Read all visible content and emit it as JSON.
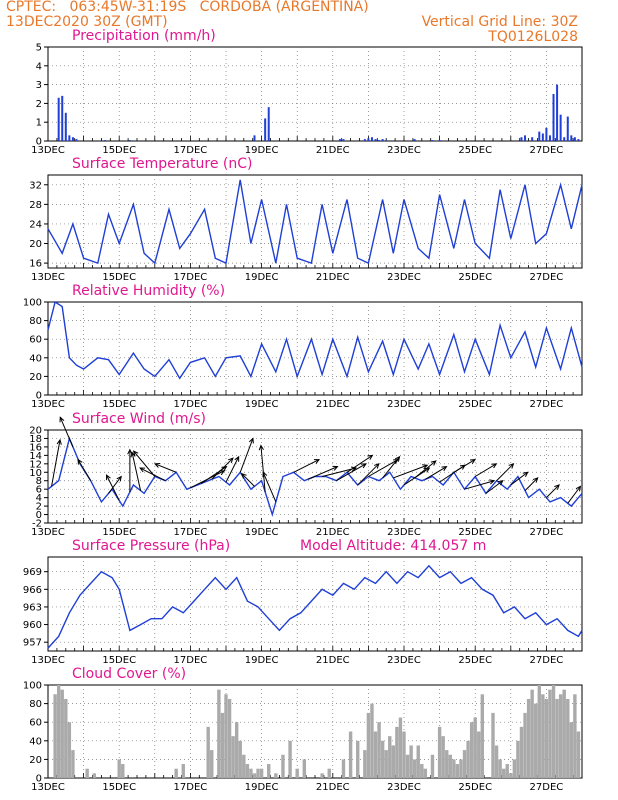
{
  "header": {
    "line1_left": "CPTEC:   063:45W-31:19S   CORDOBA (ARGENTINA)",
    "line2_left": "13DEC2020 30Z (GMT)",
    "line2_right": "Vertical Grid Line: 30Z",
    "line3_right": "TQ0126L028"
  },
  "colors": {
    "header": "#e8782a",
    "title": "#e01890",
    "series": "#1f3fd6",
    "cloud": "#aaaaaa",
    "wind": "#000000"
  },
  "chart_data": [
    {
      "type": "bar",
      "title": "Precipitation (mm/h)",
      "x_tick_labels": [
        "13DEC",
        "15DEC",
        "17DEC",
        "19DEC",
        "21DEC",
        "23DEC",
        "25DEC",
        "27DEC"
      ],
      "ylim": [
        0,
        5
      ],
      "y_ticks": [
        0,
        1,
        2,
        3,
        4,
        5
      ],
      "x": [
        0.3,
        0.4,
        0.5,
        0.6,
        0.7,
        0.8,
        1.6,
        2.3,
        5.8,
        6.1,
        6.2,
        8.2,
        8.3,
        8.9,
        9.0,
        9.1,
        9.2,
        9.3,
        9.4,
        9.5,
        10.3,
        10.8,
        11.0,
        13.3,
        13.4,
        13.6,
        13.8,
        13.9,
        14.0,
        14.1,
        14.2,
        14.3,
        14.4,
        14.5,
        14.6,
        14.7,
        14.8,
        14.9
      ],
      "values": [
        2.3,
        2.4,
        1.5,
        0.3,
        0.2,
        0.1,
        0.05,
        0.05,
        0.3,
        1.2,
        1.8,
        0.1,
        0.1,
        0.1,
        0.15,
        0.2,
        0.1,
        0.05,
        0.1,
        0.05,
        0.1,
        0.05,
        0.05,
        0.2,
        0.3,
        0.2,
        0.5,
        0.4,
        0.7,
        0.3,
        2.5,
        3.0,
        1.4,
        0.2,
        1.3,
        0.3,
        0.2,
        0.1
      ]
    },
    {
      "type": "line",
      "title": "Surface Temperature (nC)",
      "x_tick_labels": [
        "13DEC",
        "15DEC",
        "17DEC",
        "19DEC",
        "21DEC",
        "23DEC",
        "25DEC",
        "27DEC"
      ],
      "ylim": [
        15,
        34
      ],
      "y_ticks": [
        16,
        20,
        24,
        28,
        32
      ],
      "x": [
        0,
        0.4,
        0.7,
        1.0,
        1.4,
        1.7,
        2.0,
        2.4,
        2.7,
        3.0,
        3.4,
        3.7,
        4.0,
        4.4,
        4.7,
        5.0,
        5.4,
        5.7,
        6.0,
        6.4,
        6.7,
        7.0,
        7.4,
        7.7,
        8.0,
        8.4,
        8.7,
        9.0,
        9.4,
        9.7,
        10.0,
        10.4,
        10.7,
        11.0,
        11.4,
        11.7,
        12.0,
        12.4,
        12.7,
        13.0,
        13.4,
        13.7,
        14.0,
        14.4,
        14.7,
        15.0
      ],
      "values": [
        23,
        18,
        24,
        17,
        16,
        26,
        20,
        28,
        18,
        16,
        27,
        19,
        22,
        27,
        17,
        16,
        33,
        20,
        29,
        16,
        28,
        17,
        16,
        28,
        18,
        29,
        17,
        16,
        29,
        18,
        29,
        19,
        17,
        30,
        19,
        29,
        20,
        17,
        31,
        21,
        32,
        20,
        22,
        32,
        23,
        32
      ]
    },
    {
      "type": "line",
      "title": "Relative Humidity (%)",
      "x_tick_labels": [
        "13DEC",
        "15DEC",
        "17DEC",
        "19DEC",
        "21DEC",
        "23DEC",
        "25DEC",
        "27DEC"
      ],
      "ylim": [
        0,
        100
      ],
      "y_ticks": [
        0,
        20,
        40,
        60,
        80,
        100
      ],
      "x": [
        0,
        0.2,
        0.4,
        0.6,
        0.8,
        1.0,
        1.4,
        1.7,
        2.0,
        2.4,
        2.7,
        3.0,
        3.4,
        3.7,
        4.0,
        4.4,
        4.7,
        5.0,
        5.4,
        5.7,
        6.0,
        6.4,
        6.7,
        7.0,
        7.4,
        7.7,
        8.0,
        8.4,
        8.7,
        9.0,
        9.4,
        9.7,
        10.0,
        10.4,
        10.7,
        11.0,
        11.4,
        11.7,
        12.0,
        12.4,
        12.7,
        13.0,
        13.4,
        13.7,
        14.0,
        14.4,
        14.7,
        15.0
      ],
      "values": [
        70,
        100,
        95,
        40,
        32,
        28,
        40,
        38,
        22,
        45,
        28,
        20,
        38,
        18,
        35,
        40,
        20,
        40,
        42,
        20,
        55,
        25,
        60,
        20,
        60,
        22,
        60,
        20,
        62,
        25,
        58,
        22,
        60,
        28,
        55,
        22,
        65,
        25,
        60,
        22,
        75,
        40,
        68,
        30,
        72,
        28,
        72,
        30
      ]
    },
    {
      "type": "line",
      "title": "Surface Wind (m/s)",
      "x_tick_labels": [
        "13DEC",
        "15DEC",
        "17DEC",
        "19DEC",
        "21DEC",
        "23DEC",
        "25DEC",
        "27DEC"
      ],
      "ylim": [
        -2,
        20
      ],
      "y_ticks": [
        -2,
        0,
        2,
        4,
        6,
        8,
        10,
        12,
        14,
        16,
        18,
        20
      ],
      "x": [
        0,
        0.3,
        0.6,
        0.9,
        1.2,
        1.5,
        1.8,
        2.1,
        2.4,
        2.7,
        3.0,
        3.3,
        3.6,
        3.9,
        4.2,
        4.5,
        4.8,
        5.1,
        5.4,
        5.7,
        6.0,
        6.3,
        6.6,
        6.9,
        7.2,
        7.5,
        7.8,
        8.1,
        8.4,
        8.7,
        9.0,
        9.3,
        9.6,
        9.9,
        10.2,
        10.5,
        10.8,
        11.1,
        11.4,
        11.7,
        12.0,
        12.3,
        12.6,
        12.9,
        13.2,
        13.5,
        13.8,
        14.1,
        14.4,
        14.7,
        15.0
      ],
      "values": [
        6,
        8,
        18,
        12,
        8,
        3,
        6,
        2,
        7,
        5,
        9,
        8,
        10,
        6,
        7,
        8,
        9,
        7,
        10,
        6,
        8,
        0,
        9,
        10,
        8,
        9,
        9,
        8,
        10,
        7,
        9,
        8,
        10,
        6,
        9,
        8,
        9,
        7,
        10,
        6,
        9,
        5,
        8,
        6,
        9,
        4,
        6,
        3,
        4,
        2,
        5
      ],
      "wind_vectors": [
        {
          "x": 0.1,
          "u": 2,
          "v": 11
        },
        {
          "x": 0.7,
          "u": -3,
          "v": 7
        },
        {
          "x": 1.2,
          "u": -3,
          "v": 5
        },
        {
          "x": 1.7,
          "u": 3,
          "v": 4
        },
        {
          "x": 2.0,
          "u": -3,
          "v": 6
        },
        {
          "x": 2.3,
          "u": 0,
          "v": 10
        },
        {
          "x": 2.6,
          "u": -2,
          "v": 9
        },
        {
          "x": 3.0,
          "u": -5,
          "v": 6
        },
        {
          "x": 3.3,
          "u": -6,
          "v": 3
        },
        {
          "x": 3.6,
          "u": -5,
          "v": 2
        },
        {
          "x": 4.0,
          "u": 8,
          "v": 4
        },
        {
          "x": 4.3,
          "u": 6,
          "v": 4
        },
        {
          "x": 4.6,
          "u": 5,
          "v": 5
        },
        {
          "x": 5.0,
          "u": 3,
          "v": 6
        },
        {
          "x": 5.4,
          "u": 3,
          "v": 8
        },
        {
          "x": 5.8,
          "u": -3,
          "v": 3
        },
        {
          "x": 6.1,
          "u": -1,
          "v": 11
        },
        {
          "x": 6.4,
          "u": -3,
          "v": 7
        },
        {
          "x": 6.9,
          "u": 6,
          "v": 3
        },
        {
          "x": 7.3,
          "u": 7,
          "v": 3
        },
        {
          "x": 7.7,
          "u": 8,
          "v": 2
        },
        {
          "x": 8.1,
          "u": 7,
          "v": 4
        },
        {
          "x": 8.4,
          "u": 6,
          "v": 4
        },
        {
          "x": 8.7,
          "u": 5,
          "v": 5
        },
        {
          "x": 9.0,
          "u": 7,
          "v": 4
        },
        {
          "x": 9.4,
          "u": 4,
          "v": 5
        },
        {
          "x": 9.7,
          "u": 8,
          "v": 3
        },
        {
          "x": 10.0,
          "u": 6,
          "v": 4
        },
        {
          "x": 10.3,
          "u": 5,
          "v": 4
        },
        {
          "x": 10.6,
          "u": 5,
          "v": 3
        },
        {
          "x": 11.0,
          "u": 6,
          "v": 4
        },
        {
          "x": 11.4,
          "u": 5,
          "v": 3
        },
        {
          "x": 11.7,
          "u": 7,
          "v": 2
        },
        {
          "x": 12.0,
          "u": 5,
          "v": 3
        },
        {
          "x": 12.3,
          "u": 4,
          "v": 3
        },
        {
          "x": 12.6,
          "u": 4,
          "v": 4
        },
        {
          "x": 13.0,
          "u": 4,
          "v": 3
        },
        {
          "x": 13.4,
          "u": 3,
          "v": 3
        },
        {
          "x": 14.0,
          "u": 3,
          "v": 3
        },
        {
          "x": 14.6,
          "u": 3,
          "v": 4
        }
      ]
    },
    {
      "type": "line",
      "title": "Surface Pressure (hPa)",
      "annotation": "Model Altitude: 414.057  m",
      "x_tick_labels": [
        "13DEC",
        "15DEC",
        "17DEC",
        "19DEC",
        "21DEC",
        "23DEC",
        "25DEC",
        "27DEC"
      ],
      "ylim": [
        955.5,
        971.5
      ],
      "y_ticks": [
        957,
        960,
        963,
        966,
        969
      ],
      "x": [
        0,
        0.3,
        0.6,
        0.9,
        1.2,
        1.5,
        1.8,
        2.0,
        2.3,
        2.6,
        2.9,
        3.2,
        3.5,
        3.8,
        4.1,
        4.4,
        4.7,
        5.0,
        5.3,
        5.6,
        5.9,
        6.2,
        6.5,
        6.8,
        7.1,
        7.4,
        7.7,
        8.0,
        8.3,
        8.6,
        8.9,
        9.2,
        9.5,
        9.8,
        10.1,
        10.4,
        10.7,
        11.0,
        11.3,
        11.6,
        11.9,
        12.2,
        12.5,
        12.8,
        13.1,
        13.4,
        13.7,
        14.0,
        14.3,
        14.6,
        14.9,
        15.0
      ],
      "values": [
        956,
        958,
        962,
        965,
        967,
        969,
        968,
        966,
        959,
        960,
        961,
        961,
        963,
        962,
        964,
        966,
        968,
        966,
        968,
        964,
        963,
        961,
        959,
        961,
        962,
        964,
        966,
        965,
        967,
        966,
        968,
        967,
        969,
        967,
        969,
        968,
        970,
        968,
        969,
        967,
        968,
        966,
        965,
        962,
        963,
        961,
        962,
        960,
        961,
        959,
        958,
        959
      ]
    },
    {
      "type": "bar",
      "title": "Cloud Cover (%)",
      "x_tick_labels": [
        "13DEC",
        "15DEC",
        "17DEC",
        "19DEC",
        "21DEC",
        "23DEC",
        "25DEC",
        "27DEC"
      ],
      "ylim": [
        0,
        100
      ],
      "y_ticks": [
        0,
        20,
        40,
        60,
        80,
        100
      ],
      "x": [
        0.2,
        0.3,
        0.4,
        0.5,
        0.6,
        0.7,
        1.1,
        1.3,
        2.0,
        2.1,
        3.6,
        3.8,
        4.5,
        4.6,
        4.8,
        4.9,
        5.0,
        5.1,
        5.2,
        5.3,
        5.4,
        5.5,
        5.6,
        5.7,
        5.8,
        5.9,
        6.0,
        6.2,
        6.4,
        6.6,
        6.8,
        7.0,
        7.2,
        7.7,
        7.9,
        8.3,
        8.5,
        8.7,
        8.9,
        9.0,
        9.1,
        9.2,
        9.3,
        9.4,
        9.5,
        9.6,
        9.7,
        9.8,
        9.9,
        10.0,
        10.1,
        10.2,
        10.3,
        10.4,
        10.5,
        10.6,
        10.8,
        11.0,
        11.1,
        11.2,
        11.3,
        11.4,
        11.5,
        11.6,
        11.7,
        11.8,
        11.9,
        12.0,
        12.1,
        12.2,
        12.5,
        12.6,
        12.7,
        12.8,
        12.9,
        13.0,
        13.1,
        13.2,
        13.3,
        13.4,
        13.5,
        13.6,
        13.7,
        13.8,
        13.9,
        14.0,
        14.1,
        14.2,
        14.3,
        14.4,
        14.5,
        14.6,
        14.7,
        14.8,
        14.9
      ],
      "values": [
        90,
        100,
        95,
        85,
        60,
        30,
        10,
        5,
        20,
        15,
        10,
        15,
        55,
        30,
        95,
        70,
        90,
        85,
        45,
        60,
        40,
        25,
        15,
        10,
        5,
        10,
        10,
        15,
        5,
        25,
        40,
        10,
        20,
        5,
        10,
        20,
        50,
        40,
        30,
        70,
        80,
        50,
        60,
        40,
        30,
        45,
        35,
        55,
        65,
        50,
        25,
        35,
        20,
        35,
        15,
        10,
        25,
        55,
        45,
        30,
        25,
        20,
        15,
        20,
        30,
        40,
        60,
        65,
        50,
        90,
        70,
        35,
        20,
        10,
        15,
        5,
        20,
        40,
        55,
        70,
        85,
        95,
        80,
        100,
        90,
        85,
        95,
        100,
        85,
        90,
        95,
        85,
        60,
        90,
        50
      ]
    }
  ]
}
